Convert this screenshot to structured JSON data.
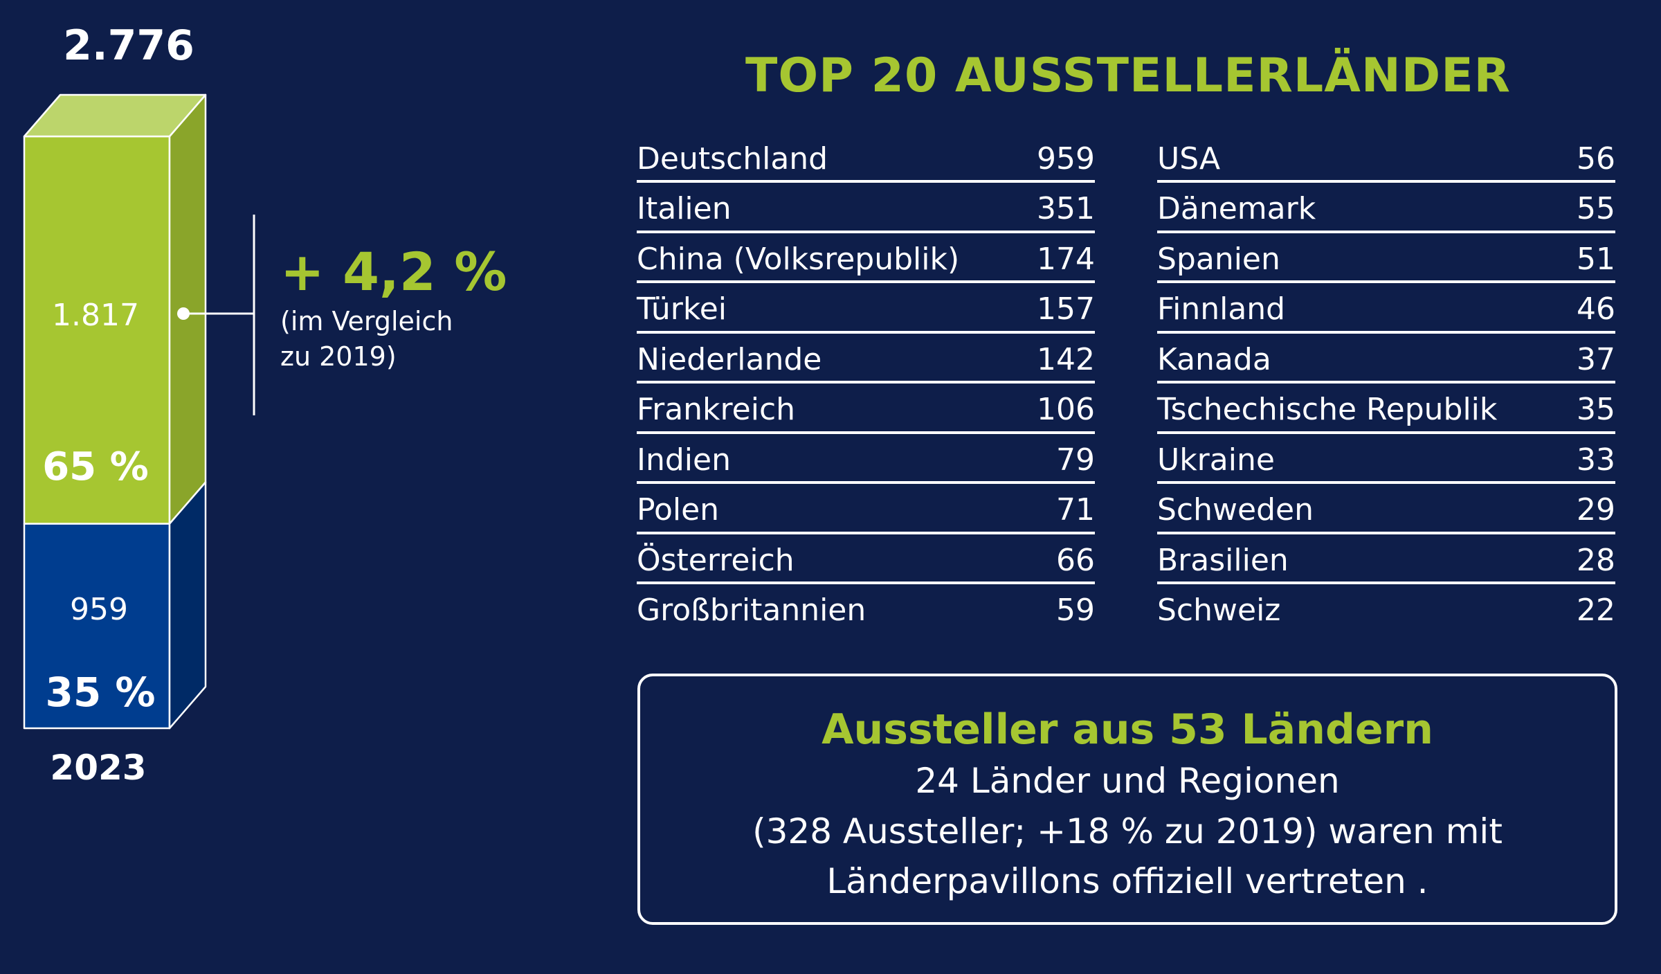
{
  "chart_data": [
    {
      "type": "bar",
      "stacked": true,
      "categories": [
        "2023"
      ],
      "total_label": "2.776",
      "series": [
        {
          "value": 959,
          "value_label": "959",
          "percent_label": "35 %",
          "color": "#003d8f"
        },
        {
          "value": 1817,
          "value_label": "1.817",
          "percent_label": "65 %",
          "color": "#a6c631"
        }
      ],
      "annotation": {
        "value": "+ 4,2 %",
        "note_lines": [
          "(im Vergleich",
          "zu 2019)"
        ]
      }
    },
    {
      "type": "table",
      "title": "TOP 20 AUSSTELLERLÄNDER",
      "rows": [
        {
          "country": "Deutschland",
          "value": "959"
        },
        {
          "country": "Italien",
          "value": "351"
        },
        {
          "country": "China (Volksrepublik)",
          "value": "174"
        },
        {
          "country": "Türkei",
          "value": "157"
        },
        {
          "country": "Niederlande",
          "value": "142"
        },
        {
          "country": "Frankreich",
          "value": "106"
        },
        {
          "country": "Indien",
          "value": "79"
        },
        {
          "country": "Polen",
          "value": "71"
        },
        {
          "country": "Österreich",
          "value": "66"
        },
        {
          "country": "Großbritannien",
          "value": "59"
        },
        {
          "country": "USA",
          "value": "56"
        },
        {
          "country": "Dänemark",
          "value": "55"
        },
        {
          "country": "Spanien",
          "value": "51"
        },
        {
          "country": "Finnland",
          "value": "46"
        },
        {
          "country": "Kanada",
          "value": "37"
        },
        {
          "country": "Tschechische Republik",
          "value": "35"
        },
        {
          "country": "Ukraine",
          "value": "33"
        },
        {
          "country": "Schweden",
          "value": "29"
        },
        {
          "country": "Brasilien",
          "value": "28"
        },
        {
          "country": "Schweiz",
          "value": "22"
        }
      ]
    }
  ],
  "summary": {
    "title": "Aussteller aus 53 Ländern",
    "lines": [
      "24 Länder und Regionen",
      "(328 Aussteller; +18 % zu 2019) waren mit",
      "Länderpavillons offiziell vertreten ."
    ]
  },
  "colors": {
    "background": "#0e1e4a",
    "accent_green": "#a6c631",
    "bar_blue": "#003d8f",
    "text": "#ffffff"
  }
}
